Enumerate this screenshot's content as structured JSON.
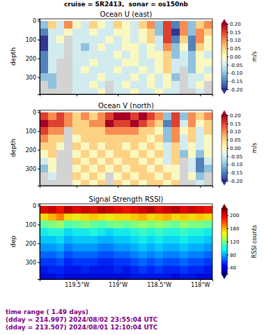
{
  "title": "cruise = SR2413,  sonar = os150nb",
  "footer": [
    "time range ( 1.49 days)",
    "(dday = 214.997) 2024/08/02 23:55:04 UTC",
    "(dday = 213.507) 2024/08/01 12:10:04 UTC"
  ],
  "chart_data": [
    {
      "type": "heatmap",
      "title": "Ocean U (east)",
      "y_label": "depth",
      "tick_labels": "y",
      "x": [
        -119.9,
        -119.8,
        -119.7,
        -119.6,
        -119.5,
        -119.4,
        -119.3,
        -119.2,
        -119.1,
        -119.0,
        -118.9,
        -118.8,
        -118.7,
        -118.6,
        -118.5,
        -118.4,
        -118.3,
        -118.2,
        -118.1,
        -118.0,
        -117.9
      ],
      "y": [
        20,
        60,
        100,
        140,
        180,
        220,
        260,
        300,
        340,
        380
      ],
      "z": [
        [
          -0.1,
          0.05,
          -0.05,
          0.1,
          0.0,
          -0.05,
          0.05,
          0.0,
          -0.05,
          0.05,
          0.0,
          -0.05,
          0.05,
          0.1,
          -0.1,
          0.15,
          -0.15,
          0.1,
          -0.1,
          0.05,
          0.1
        ],
        [
          -0.15,
          -0.05,
          -0.05,
          0.0,
          -0.05,
          -0.05,
          0.0,
          -0.05,
          -0.05,
          0.0,
          0.0,
          -0.05,
          0.0,
          0.05,
          -0.1,
          0.15,
          -0.2,
          0.1,
          -0.1,
          0.1,
          0.05
        ],
        [
          -0.2,
          -0.05,
          0.0,
          null,
          -0.05,
          -0.05,
          -0.05,
          -0.05,
          0.0,
          -0.05,
          0.0,
          -0.05,
          0.0,
          0.05,
          -0.05,
          0.15,
          -0.15,
          0.05,
          -0.15,
          0.1,
          0.0
        ],
        [
          -0.2,
          -0.05,
          -0.05,
          null,
          -0.05,
          -0.1,
          -0.05,
          0.0,
          -0.05,
          -0.05,
          0.0,
          0.0,
          -0.05,
          0.0,
          -0.05,
          0.1,
          -0.1,
          0.0,
          -0.15,
          0.05,
          0.0
        ],
        [
          -0.15,
          -0.05,
          -0.05,
          null,
          -0.05,
          -0.05,
          -0.05,
          -0.05,
          -0.05,
          0.0,
          -0.05,
          0.0,
          -0.05,
          0.0,
          0.0,
          0.05,
          -0.1,
          -0.05,
          -0.1,
          0.0,
          -0.05
        ],
        [
          -0.15,
          -0.05,
          null,
          null,
          -0.05,
          -0.05,
          0.0,
          -0.05,
          -0.05,
          -0.05,
          0.0,
          0.0,
          -0.05,
          -0.05,
          0.0,
          0.05,
          -0.05,
          -0.05,
          -0.1,
          0.0,
          0.0
        ],
        [
          -0.15,
          -0.05,
          null,
          null,
          -0.05,
          0.0,
          -0.05,
          -0.05,
          -0.05,
          0.0,
          -0.05,
          -0.05,
          0.0,
          -0.05,
          0.0,
          0.05,
          -0.05,
          null,
          -0.1,
          0.0,
          -0.05
        ],
        [
          -0.1,
          -0.1,
          null,
          null,
          -0.05,
          -0.05,
          -0.05,
          0.0,
          -0.05,
          -0.05,
          -0.05,
          0.0,
          -0.05,
          0.0,
          -0.05,
          0.0,
          -0.1,
          null,
          -0.05,
          -0.05,
          0.0
        ],
        [
          null,
          -0.1,
          null,
          null,
          -0.05,
          -0.05,
          0.0,
          -0.05,
          null,
          -0.05,
          0.0,
          -0.05,
          -0.05,
          0.0,
          -0.05,
          0.0,
          -0.05,
          null,
          -0.05,
          0.0,
          null
        ],
        [
          null,
          null,
          null,
          null,
          -0.05,
          -0.05,
          -0.05,
          0.0,
          null,
          -0.05,
          -0.05,
          0.0,
          -0.05,
          -0.05,
          0.0,
          -0.05,
          -0.05,
          null,
          null,
          -0.05,
          null
        ]
      ],
      "xlim": [
        -119.95,
        -117.85
      ],
      "xticks": [
        {
          "value": -119.5,
          "label": "119.5°W"
        },
        {
          "value": -119,
          "label": "119°W"
        },
        {
          "value": -118.5,
          "label": "118.5°W"
        },
        {
          "value": -118,
          "label": "118°W"
        }
      ],
      "ylim": [
        390,
        -10
      ],
      "yticks": [
        0,
        100,
        200,
        300
      ],
      "colorbar": {
        "label": "m/s",
        "range": [
          -0.2,
          0.2
        ],
        "ticks": [
          {
            "value": -0.2,
            "label": "-0.20"
          },
          {
            "value": -0.15,
            "label": "-0.15"
          },
          {
            "value": -0.1,
            "label": "-0.10"
          },
          {
            "value": -0.05,
            "label": "-0.05"
          },
          {
            "value": 0,
            "label": "0.00"
          },
          {
            "value": 0.05,
            "label": "0.05"
          },
          {
            "value": 0.1,
            "label": "0.10"
          },
          {
            "value": 0.15,
            "label": "0.15"
          },
          {
            "value": 0.2,
            "label": "0.20"
          }
        ],
        "colors": [
          "#313695",
          "#4575b4",
          "#74add1",
          "#abd9e9",
          "#e0f3f8",
          "#ffffbf",
          "#fee090",
          "#fdae61",
          "#f46d43",
          "#d73027",
          "#a50026"
        ]
      }
    },
    {
      "type": "heatmap",
      "title": "Ocean V (north)",
      "y_label": "depth",
      "tick_labels": "y",
      "x": [
        -119.9,
        -119.8,
        -119.7,
        -119.6,
        -119.5,
        -119.4,
        -119.3,
        -119.2,
        -119.1,
        -119.0,
        -118.9,
        -118.8,
        -118.7,
        -118.6,
        -118.5,
        -118.4,
        -118.3,
        -118.2,
        -118.1,
        -118.0,
        -117.9
      ],
      "y": [
        20,
        60,
        100,
        140,
        180,
        220,
        260,
        300,
        340,
        380
      ],
      "z": [
        [
          0.15,
          0.1,
          0.15,
          0.1,
          0.05,
          0.1,
          0.05,
          0.1,
          0.15,
          0.2,
          0.2,
          0.15,
          0.2,
          0.15,
          0.1,
          -0.1,
          0.15,
          -0.1,
          0.1,
          0.05,
          0.1
        ],
        [
          0.2,
          0.15,
          0.15,
          0.1,
          0.05,
          0.05,
          0.1,
          0.1,
          0.2,
          0.15,
          0.15,
          0.2,
          0.15,
          0.1,
          0.05,
          -0.15,
          0.15,
          -0.05,
          0.1,
          0.0,
          0.05
        ],
        [
          0.15,
          0.1,
          0.1,
          null,
          0.05,
          0.05,
          0.05,
          0.05,
          0.1,
          0.1,
          0.1,
          0.1,
          0.05,
          0.05,
          0.0,
          -0.1,
          0.1,
          0.0,
          0.05,
          -0.05,
          0.05
        ],
        [
          0.1,
          0.05,
          0.05,
          null,
          0.0,
          0.05,
          0.05,
          0.05,
          0.05,
          0.05,
          0.05,
          0.05,
          0.05,
          0.0,
          0.05,
          -0.1,
          0.1,
          -0.05,
          0.05,
          -0.05,
          0.0
        ],
        [
          0.05,
          0.05,
          0.0,
          null,
          0.05,
          0.0,
          0.05,
          0.0,
          0.05,
          0.05,
          0.0,
          0.05,
          0.0,
          0.05,
          0.0,
          -0.05,
          0.05,
          -0.05,
          0.0,
          -0.05,
          0.0
        ],
        [
          0.0,
          0.05,
          null,
          null,
          0.0,
          0.05,
          0.0,
          0.05,
          0.0,
          0.05,
          0.05,
          0.0,
          0.05,
          0.0,
          0.05,
          -0.05,
          0.05,
          -0.1,
          0.0,
          -0.1,
          0.0
        ],
        [
          -0.05,
          0.0,
          null,
          null,
          0.05,
          0.0,
          0.05,
          0.0,
          0.05,
          0.0,
          0.05,
          0.05,
          0.0,
          0.05,
          0.0,
          -0.05,
          0.05,
          null,
          -0.05,
          -0.15,
          -0.05
        ],
        [
          -0.1,
          0.0,
          null,
          null,
          0.0,
          0.05,
          0.0,
          0.05,
          0.0,
          0.05,
          0.0,
          0.05,
          0.05,
          0.0,
          0.05,
          0.0,
          0.0,
          null,
          -0.05,
          -0.15,
          -0.1
        ],
        [
          null,
          -0.05,
          null,
          null,
          0.05,
          0.0,
          0.05,
          0.0,
          null,
          0.0,
          0.05,
          0.0,
          0.05,
          0.05,
          0.0,
          0.05,
          0.0,
          null,
          0.0,
          -0.1,
          null
        ],
        [
          null,
          null,
          null,
          null,
          0.0,
          0.05,
          0.0,
          0.05,
          null,
          0.05,
          0.0,
          0.05,
          0.0,
          0.05,
          0.05,
          0.0,
          0.05,
          null,
          null,
          -0.05,
          null
        ]
      ],
      "xlim": [
        -119.95,
        -117.85
      ],
      "xticks": [
        {
          "value": -119.5,
          "label": "119.5°W"
        },
        {
          "value": -119,
          "label": "119°W"
        },
        {
          "value": -118.5,
          "label": "118.5°W"
        },
        {
          "value": -118,
          "label": "118°W"
        }
      ],
      "ylim": [
        390,
        -10
      ],
      "yticks": [
        0,
        100,
        200,
        300
      ],
      "colorbar": {
        "label": "m/s",
        "range": [
          -0.2,
          0.2
        ],
        "ticks": [
          {
            "value": -0.2,
            "label": "-0.20"
          },
          {
            "value": -0.15,
            "label": "-0.15"
          },
          {
            "value": -0.1,
            "label": "-0.10"
          },
          {
            "value": -0.05,
            "label": "-0.05"
          },
          {
            "value": 0,
            "label": "0.00"
          },
          {
            "value": 0.05,
            "label": "0.05"
          },
          {
            "value": 0.1,
            "label": "0.10"
          },
          {
            "value": 0.15,
            "label": "0.15"
          },
          {
            "value": 0.2,
            "label": "0.20"
          }
        ],
        "colors": [
          "#313695",
          "#4575b4",
          "#74add1",
          "#abd9e9",
          "#e0f3f8",
          "#ffffbf",
          "#fee090",
          "#fdae61",
          "#f46d43",
          "#d73027",
          "#a50026"
        ]
      }
    },
    {
      "type": "heatmap",
      "title": "Signal Strength RSSI)",
      "y_label": "dep",
      "x": [
        -119.9,
        -119.8,
        -119.7,
        -119.6,
        -119.5,
        -119.4,
        -119.3,
        -119.2,
        -119.1,
        -119.0,
        -118.9,
        -118.8,
        -118.7,
        -118.6,
        -118.5,
        -118.4,
        -118.3,
        -118.2,
        -118.1,
        -118.0,
        -117.9
      ],
      "y": [
        20,
        60,
        100,
        140,
        180,
        220,
        260,
        300,
        340,
        380
      ],
      "z": [
        [
          200,
          205,
          195,
          210,
          200,
          205,
          200,
          210,
          205,
          200,
          195,
          200,
          205,
          210,
          200,
          205,
          210,
          200,
          205,
          200,
          195
        ],
        [
          150,
          160,
          170,
          150,
          145,
          150,
          155,
          150,
          145,
          150,
          150,
          155,
          160,
          150,
          155,
          160,
          150,
          155,
          150,
          155,
          150
        ],
        [
          115,
          120,
          125,
          110,
          115,
          120,
          115,
          110,
          115,
          120,
          115,
          120,
          125,
          120,
          125,
          120,
          115,
          125,
          120,
          120,
          115
        ],
        [
          95,
          100,
          100,
          90,
          95,
          95,
          100,
          95,
          90,
          95,
          95,
          100,
          105,
          100,
          105,
          100,
          100,
          105,
          100,
          100,
          95
        ],
        [
          85,
          85,
          90,
          80,
          85,
          85,
          85,
          80,
          80,
          85,
          85,
          90,
          95,
          90,
          95,
          90,
          90,
          95,
          90,
          90,
          85
        ],
        [
          75,
          75,
          80,
          70,
          75,
          75,
          75,
          70,
          70,
          75,
          75,
          80,
          85,
          80,
          85,
          80,
          80,
          85,
          80,
          80,
          75
        ],
        [
          65,
          65,
          70,
          60,
          65,
          65,
          65,
          60,
          60,
          65,
          65,
          70,
          75,
          70,
          75,
          70,
          70,
          75,
          70,
          70,
          65
        ],
        [
          55,
          55,
          60,
          50,
          55,
          55,
          55,
          50,
          50,
          55,
          55,
          60,
          65,
          60,
          65,
          60,
          60,
          65,
          60,
          60,
          55
        ],
        [
          45,
          50,
          50,
          45,
          45,
          50,
          45,
          45,
          45,
          50,
          45,
          50,
          55,
          50,
          55,
          50,
          50,
          55,
          50,
          50,
          45
        ],
        [
          40,
          40,
          45,
          40,
          40,
          40,
          40,
          40,
          40,
          40,
          40,
          45,
          45,
          45,
          45,
          45,
          40,
          45,
          45,
          40,
          40
        ]
      ],
      "xlim": [
        -119.95,
        -117.85
      ],
      "xticks": [
        {
          "value": -119.5,
          "label": "119.5°W"
        },
        {
          "value": -119,
          "label": "119°W"
        },
        {
          "value": -118.5,
          "label": "118.5°W"
        },
        {
          "value": -118,
          "label": "118°W"
        }
      ],
      "ylim": [
        390,
        -10
      ],
      "yticks": [
        0,
        100,
        200,
        300
      ],
      "colorbar": {
        "label": "RSSI counts",
        "range": [
          20,
          220
        ],
        "ticks": [
          40,
          80,
          120,
          160,
          200
        ],
        "colors": [
          "#00007f",
          "#0000ff",
          "#007fff",
          "#00ffff",
          "#7fff7f",
          "#ffff00",
          "#ff7f00",
          "#ff0000",
          "#7f0000"
        ]
      }
    }
  ]
}
